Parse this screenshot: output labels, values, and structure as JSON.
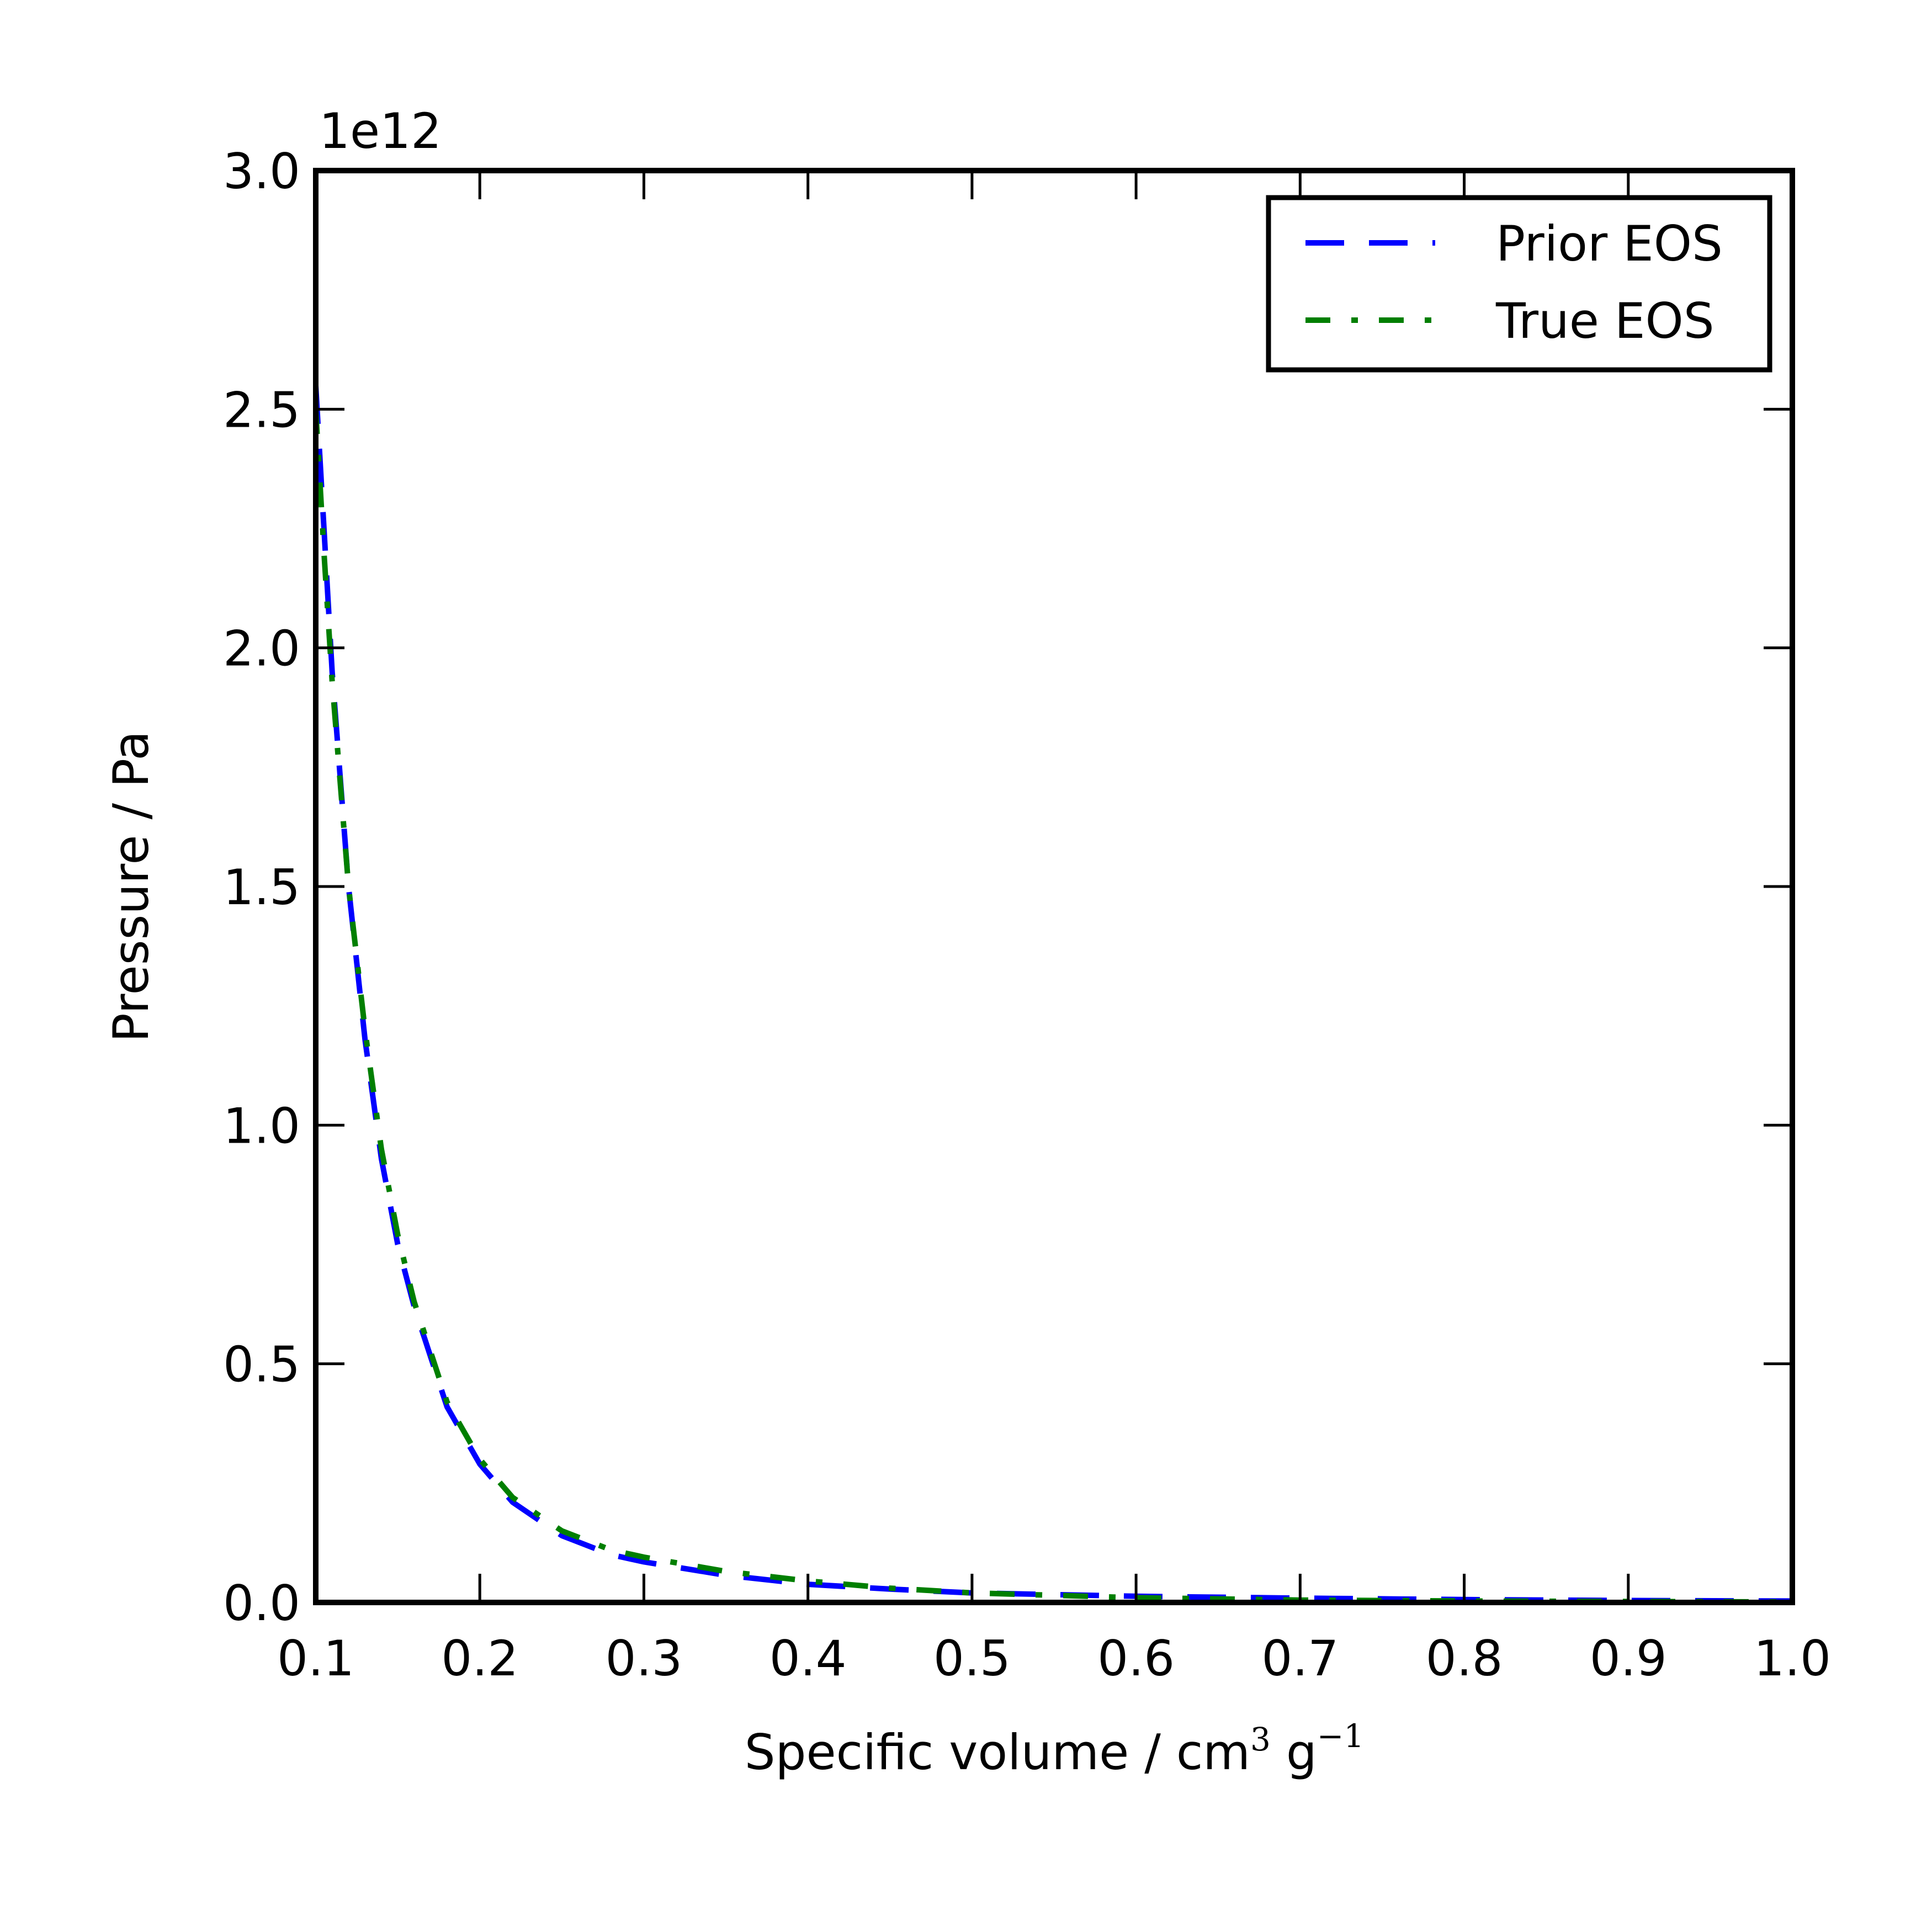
{
  "chart_data": {
    "type": "line",
    "title": "",
    "xlabel": "Specific volume / cm",
    "xlabel_sup1": "3",
    "xlabel_mid": " g",
    "xlabel_sup2": "−1",
    "ylabel": "Pressure / Pa",
    "y_offset_label": "1e12",
    "xlim": [
      0.1,
      1.0
    ],
    "ylim": [
      0.0,
      3.0
    ],
    "x_ticks": [
      "0.1",
      "0.2",
      "0.3",
      "0.4",
      "0.5",
      "0.6",
      "0.7",
      "0.8",
      "0.9",
      "1.0"
    ],
    "y_ticks": [
      "0.0",
      "0.5",
      "1.0",
      "1.5",
      "2.0",
      "2.5",
      "3.0"
    ],
    "grid": false,
    "legend_position": "top-right",
    "series": [
      {
        "name": "Prior EOS",
        "color": "#0000ff",
        "style": "dashed",
        "x": [
          0.1,
          0.105,
          0.11,
          0.12,
          0.13,
          0.14,
          0.15,
          0.16,
          0.18,
          0.2,
          0.22,
          0.25,
          0.28,
          0.3,
          0.35,
          0.4,
          0.45,
          0.5,
          0.6,
          0.7,
          0.8,
          0.9,
          1.0
        ],
        "y": [
          2.55,
          2.25,
          1.95,
          1.5,
          1.18,
          0.93,
          0.75,
          0.62,
          0.41,
          0.29,
          0.21,
          0.14,
          0.1,
          0.085,
          0.057,
          0.038,
          0.028,
          0.02,
          0.013,
          0.009,
          0.006,
          0.004,
          0.003
        ]
      },
      {
        "name": "True EOS",
        "color": "#007f00",
        "style": "dashdot",
        "x": [
          0.1,
          0.105,
          0.11,
          0.12,
          0.13,
          0.14,
          0.15,
          0.16,
          0.18,
          0.2,
          0.22,
          0.25,
          0.28,
          0.3,
          0.35,
          0.4,
          0.45,
          0.5,
          0.6,
          0.7,
          0.8,
          0.9,
          1.0
        ],
        "y": [
          2.5,
          2.2,
          1.93,
          1.5,
          1.2,
          0.95,
          0.77,
          0.63,
          0.42,
          0.3,
          0.22,
          0.15,
          0.11,
          0.095,
          0.065,
          0.045,
          0.03,
          0.02,
          0.01,
          0.005,
          0.003,
          0.002,
          0.001
        ]
      }
    ]
  }
}
